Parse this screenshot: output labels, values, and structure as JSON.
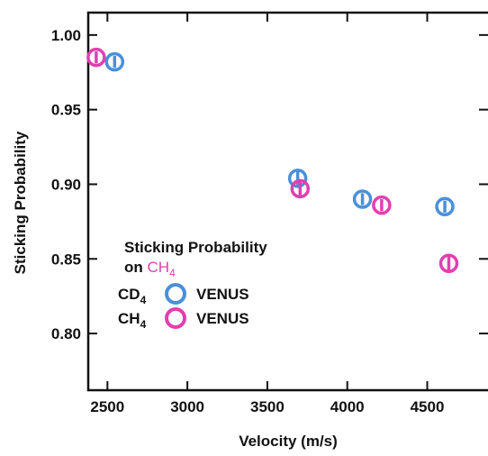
{
  "chart_data": {
    "type": "scatter",
    "title": "",
    "xlabel": "Velocity (m/s)",
    "ylabel": "Sticking Probability",
    "xlim": [
      2380,
      4880
    ],
    "ylim": [
      0.762,
      1.015
    ],
    "x_ticks": [
      2500,
      3000,
      3500,
      4000,
      4500
    ],
    "x_tick_labels": [
      "2500",
      "3000",
      "3500",
      "4000",
      "4500"
    ],
    "y_ticks": [
      0.8,
      0.85,
      0.9,
      0.95,
      1.0
    ],
    "y_tick_labels": [
      "0.80",
      "0.85",
      "0.90",
      "0.95",
      "1.00"
    ],
    "grid": false,
    "legend": {
      "position": "lower-left",
      "title_line1": "Sticking Probability",
      "title_line2_prefix": "on ",
      "title_line2_molecule": "CH",
      "title_line2_subscript": "4"
    },
    "series": [
      {
        "label": "CD",
        "label_subscript": "4",
        "method": "VENUS",
        "color": "#4a90d9",
        "points": [
          {
            "x": 2545,
            "y": 0.982,
            "err": 0.004
          },
          {
            "x": 3690,
            "y": 0.904,
            "err": 0.006
          },
          {
            "x": 4095,
            "y": 0.89,
            "err": 0.004
          },
          {
            "x": 4610,
            "y": 0.885,
            "err": 0.004
          }
        ]
      },
      {
        "label": "CH",
        "label_subscript": "4",
        "method": "VENUS",
        "color": "#e040b0",
        "points": [
          {
            "x": 2430,
            "y": 0.985,
            "err": 0.004
          },
          {
            "x": 3705,
            "y": 0.897,
            "err": 0.006
          },
          {
            "x": 4215,
            "y": 0.886,
            "err": 0.004
          },
          {
            "x": 4635,
            "y": 0.847,
            "err": 0.006
          }
        ]
      }
    ]
  }
}
